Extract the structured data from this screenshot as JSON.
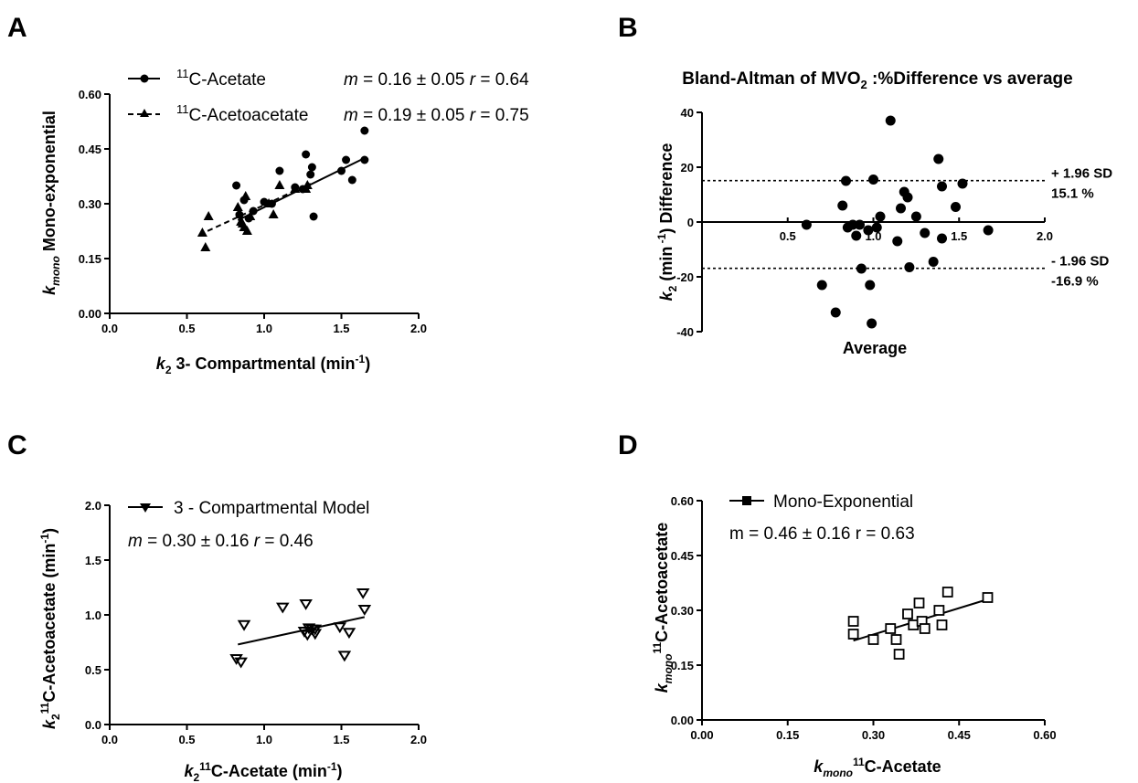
{
  "panels": {
    "A": {
      "letter": "A"
    },
    "B": {
      "letter": "B"
    },
    "C": {
      "letter": "C"
    },
    "D": {
      "letter": "D"
    }
  },
  "chart_data": [
    {
      "id": "A",
      "type": "scatter",
      "title": "",
      "xlabel": {
        "pre": "k",
        "sub": "2",
        "mid": " 3- Compartmental (min",
        "sup": "-1",
        "post": ")"
      },
      "ylabel": {
        "pre": "k",
        "sub": "mono",
        "post": " Mono-exponential"
      },
      "xlim": [
        0,
        2.0
      ],
      "ylim": [
        0,
        0.6
      ],
      "xticks": [
        "0.0",
        "0.5",
        "1.0",
        "1.5",
        "2.0"
      ],
      "yticks": [
        "0.00",
        "0.15",
        "0.30",
        "0.45",
        "0.60"
      ],
      "grid": false,
      "legend_position": "top",
      "series": [
        {
          "name": "11C-Acetate",
          "name_parts": {
            "sup": "11",
            "text": "C-Acetate"
          },
          "stat_text": {
            "m": "m",
            "eq": " = 0.16 ± 0.05 ",
            "r": "r",
            "req": " = 0.64"
          },
          "marker": "circle",
          "line_style": "solid",
          "fit": {
            "x": [
              0.83,
              1.65
            ],
            "y": [
              0.255,
              0.425
            ]
          },
          "points": [
            [
              0.82,
              0.35
            ],
            [
              0.84,
              0.27
            ],
            [
              0.87,
              0.31
            ],
            [
              0.9,
              0.26
            ],
            [
              0.93,
              0.28
            ],
            [
              1.0,
              0.305
            ],
            [
              1.1,
              0.39
            ],
            [
              1.2,
              0.345
            ],
            [
              1.25,
              0.34
            ],
            [
              1.27,
              0.435
            ],
            [
              1.3,
              0.38
            ],
            [
              1.31,
              0.4
            ],
            [
              1.32,
              0.265
            ],
            [
              1.5,
              0.39
            ],
            [
              1.53,
              0.42
            ],
            [
              1.57,
              0.365
            ],
            [
              1.65,
              0.5
            ],
            [
              1.65,
              0.42
            ],
            [
              1.05,
              0.3
            ]
          ]
        },
        {
          "name": "11C-Acetoacetate",
          "name_parts": {
            "sup": "11",
            "text": "C-Acetoacetate"
          },
          "stat_text": {
            "m": "m",
            "eq": " = 0.19 ± 0.05 ",
            "r": "r",
            "req": " = 0.75"
          },
          "marker": "triangle",
          "line_style": "dashed",
          "fit": {
            "x": [
              0.58,
              1.3
            ],
            "y": [
              0.215,
              0.355
            ]
          },
          "points": [
            [
              0.6,
              0.22
            ],
            [
              0.62,
              0.18
            ],
            [
              0.64,
              0.265
            ],
            [
              0.83,
              0.29
            ],
            [
              0.85,
              0.25
            ],
            [
              0.86,
              0.245
            ],
            [
              0.87,
              0.235
            ],
            [
              0.88,
              0.32
            ],
            [
              0.89,
              0.225
            ],
            [
              0.91,
              0.265
            ],
            [
              1.03,
              0.3
            ],
            [
              1.1,
              0.35
            ],
            [
              1.06,
              0.27
            ],
            [
              1.2,
              0.34
            ],
            [
              1.27,
              0.34
            ],
            [
              1.28,
              0.35
            ]
          ]
        }
      ]
    },
    {
      "id": "B",
      "type": "scatter",
      "title": {
        "pre": "Bland-Altman of MVO",
        "sub": "2",
        "post": " :%Difference vs average"
      },
      "xlabel": "Average",
      "ylabel": {
        "pre": "k",
        "sub": "2",
        "mid": " (min",
        "sup": " -1",
        "post": ") Difference"
      },
      "xlim": [
        0,
        2.0
      ],
      "ylim": [
        -40,
        40
      ],
      "xticks": [
        "0.5",
        "1.0",
        "1.5",
        "2.0"
      ],
      "yticks": [
        "-40",
        "-20",
        "0",
        "20",
        "40"
      ],
      "grid": false,
      "reference_lines": [
        {
          "y": 15.1,
          "label1": "+ 1.96 SD",
          "label2": "15.1 %"
        },
        {
          "y": -16.9,
          "label1": "- 1.96 SD",
          "label2": "-16.9 %"
        }
      ],
      "points": [
        [
          0.61,
          -1
        ],
        [
          0.7,
          -23
        ],
        [
          0.78,
          -33
        ],
        [
          0.82,
          6
        ],
        [
          0.85,
          -2
        ],
        [
          0.84,
          15
        ],
        [
          0.88,
          -1
        ],
        [
          0.9,
          -5
        ],
        [
          0.92,
          -1
        ],
        [
          0.93,
          -17
        ],
        [
          0.97,
          -3
        ],
        [
          0.99,
          -37
        ],
        [
          0.98,
          -23
        ],
        [
          1.0,
          15.5
        ],
        [
          1.02,
          -2
        ],
        [
          1.04,
          2
        ],
        [
          1.1,
          37
        ],
        [
          1.14,
          -7
        ],
        [
          1.16,
          5
        ],
        [
          1.18,
          11
        ],
        [
          1.2,
          9
        ],
        [
          1.21,
          -16.5
        ],
        [
          1.25,
          2
        ],
        [
          1.3,
          -4
        ],
        [
          1.35,
          -14.5
        ],
        [
          1.38,
          23
        ],
        [
          1.4,
          -6
        ],
        [
          1.4,
          13
        ],
        [
          1.48,
          5.5
        ],
        [
          1.52,
          14
        ],
        [
          1.67,
          -3
        ]
      ]
    },
    {
      "id": "C",
      "type": "scatter",
      "title": "",
      "xlabel": {
        "pre": "k",
        "sub": "2",
        "sup": "11",
        "post": "C-Acetate (min",
        "sup2": "-1",
        "post2": ")"
      },
      "ylabel": {
        "pre": "k",
        "sub": "2",
        "sup": "11",
        "post": "C-Acetoacetate (min",
        "sup2": "-1",
        "post2": ")"
      },
      "xlim": [
        0,
        2.0
      ],
      "ylim": [
        0,
        2.0
      ],
      "xticks": [
        "0.0",
        "0.5",
        "1.0",
        "1.5",
        "2.0"
      ],
      "yticks": [
        "0.0",
        "0.5",
        "1.0",
        "1.5",
        "2.0"
      ],
      "grid": false,
      "legend_position": "top-left",
      "series": [
        {
          "name": "3 - Compartmental Model",
          "stat_text": {
            "m": "m",
            "eq": " = 0.30 ± 0.16 ",
            "r": "r",
            "req": " = 0.46"
          },
          "marker": "triangle-down",
          "line_style": "solid",
          "fit": {
            "x": [
              0.83,
              1.65
            ],
            "y": [
              0.73,
              0.98
            ]
          },
          "points": [
            [
              0.82,
              0.6
            ],
            [
              0.85,
              0.57
            ],
            [
              0.87,
              0.91
            ],
            [
              1.12,
              1.07
            ],
            [
              1.26,
              0.85
            ],
            [
              1.27,
              1.1
            ],
            [
              1.28,
              0.82
            ],
            [
              1.29,
              0.88
            ],
            [
              1.31,
              0.87
            ],
            [
              1.33,
              0.87
            ],
            [
              1.33,
              0.83
            ],
            [
              1.49,
              0.89
            ],
            [
              1.52,
              0.63
            ],
            [
              1.55,
              0.84
            ],
            [
              1.64,
              1.2
            ],
            [
              1.65,
              1.05
            ]
          ]
        }
      ]
    },
    {
      "id": "D",
      "type": "scatter",
      "title": "",
      "xlabel": {
        "pre": "k",
        "sub": "mono",
        "sup": "11",
        "post": "C-Acetate"
      },
      "ylabel": {
        "pre": "k",
        "sub": "mono",
        "sup": "11",
        "post": "C-Acetoacetate"
      },
      "xlim": [
        0,
        0.6
      ],
      "ylim": [
        0,
        0.6
      ],
      "xticks": [
        "0.00",
        "0.15",
        "0.30",
        "0.45",
        "0.60"
      ],
      "yticks": [
        "0.00",
        "0.15",
        "0.30",
        "0.45",
        "0.60"
      ],
      "grid": false,
      "legend_position": "top-left",
      "series": [
        {
          "name": "Mono-Exponential",
          "stat_text": "m = 0.46 ± 0.16 r = 0.63",
          "marker": "square-open",
          "line_style": "solid",
          "fit": {
            "x": [
              0.265,
              0.5
            ],
            "y": [
              0.217,
              0.33
            ]
          },
          "points": [
            [
              0.265,
              0.27
            ],
            [
              0.265,
              0.235
            ],
            [
              0.3,
              0.22
            ],
            [
              0.33,
              0.25
            ],
            [
              0.34,
              0.22
            ],
            [
              0.345,
              0.18
            ],
            [
              0.36,
              0.29
            ],
            [
              0.37,
              0.26
            ],
            [
              0.38,
              0.32
            ],
            [
              0.385,
              0.27
            ],
            [
              0.39,
              0.25
            ],
            [
              0.415,
              0.3
            ],
            [
              0.42,
              0.26
            ],
            [
              0.43,
              0.35
            ],
            [
              0.5,
              0.335
            ]
          ]
        }
      ]
    }
  ]
}
